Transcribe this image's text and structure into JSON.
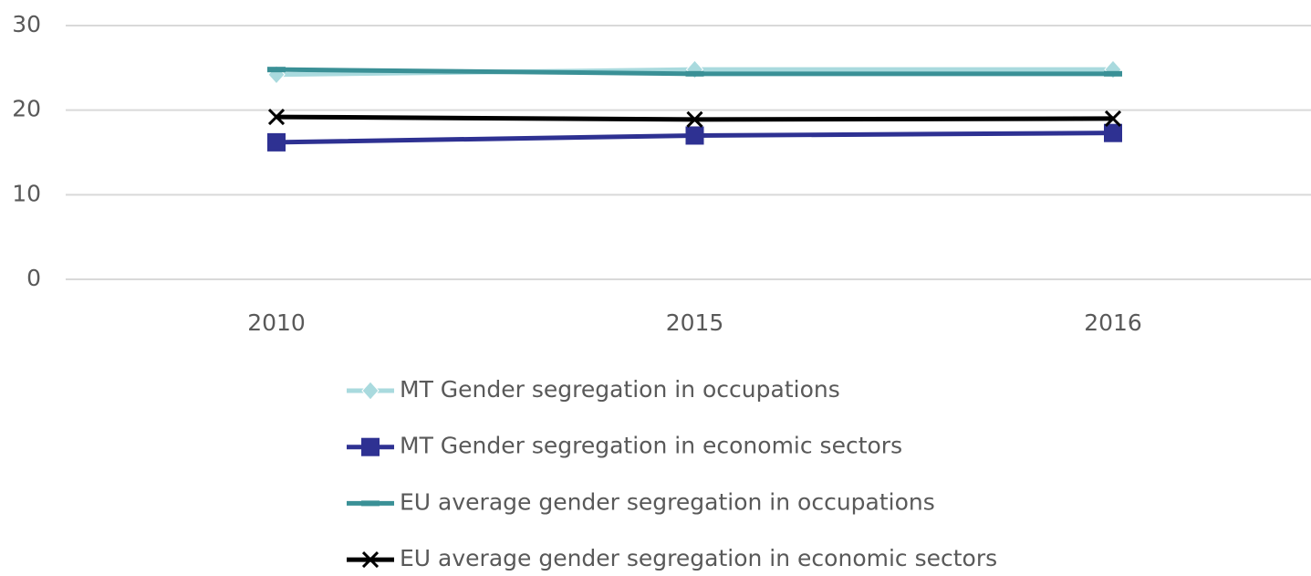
{
  "chart_data": {
    "type": "line",
    "categories": [
      "2010",
      "2015",
      "2016"
    ],
    "series": [
      {
        "name": "MT Gender segregation in occupations",
        "color": "#a9dade",
        "marker": "diamond",
        "values": [
          24.2,
          24.8,
          24.8
        ]
      },
      {
        "name": "MT Gender segregation in economic sectors",
        "color": "#2e3192",
        "marker": "square",
        "values": [
          16.2,
          17.0,
          17.3
        ]
      },
      {
        "name": "EU average gender segregation in occupations",
        "color": "#3a9096",
        "marker": "dash",
        "values": [
          24.8,
          24.3,
          24.3
        ]
      },
      {
        "name": "EU average gender segregation in economic sectors",
        "color": "#000000",
        "marker": "x",
        "values": [
          19.2,
          18.9,
          19.0
        ]
      }
    ],
    "ylim": [
      0,
      30
    ],
    "yticks": [
      0,
      10,
      20,
      30
    ],
    "grid": true,
    "legend": "bottom"
  }
}
